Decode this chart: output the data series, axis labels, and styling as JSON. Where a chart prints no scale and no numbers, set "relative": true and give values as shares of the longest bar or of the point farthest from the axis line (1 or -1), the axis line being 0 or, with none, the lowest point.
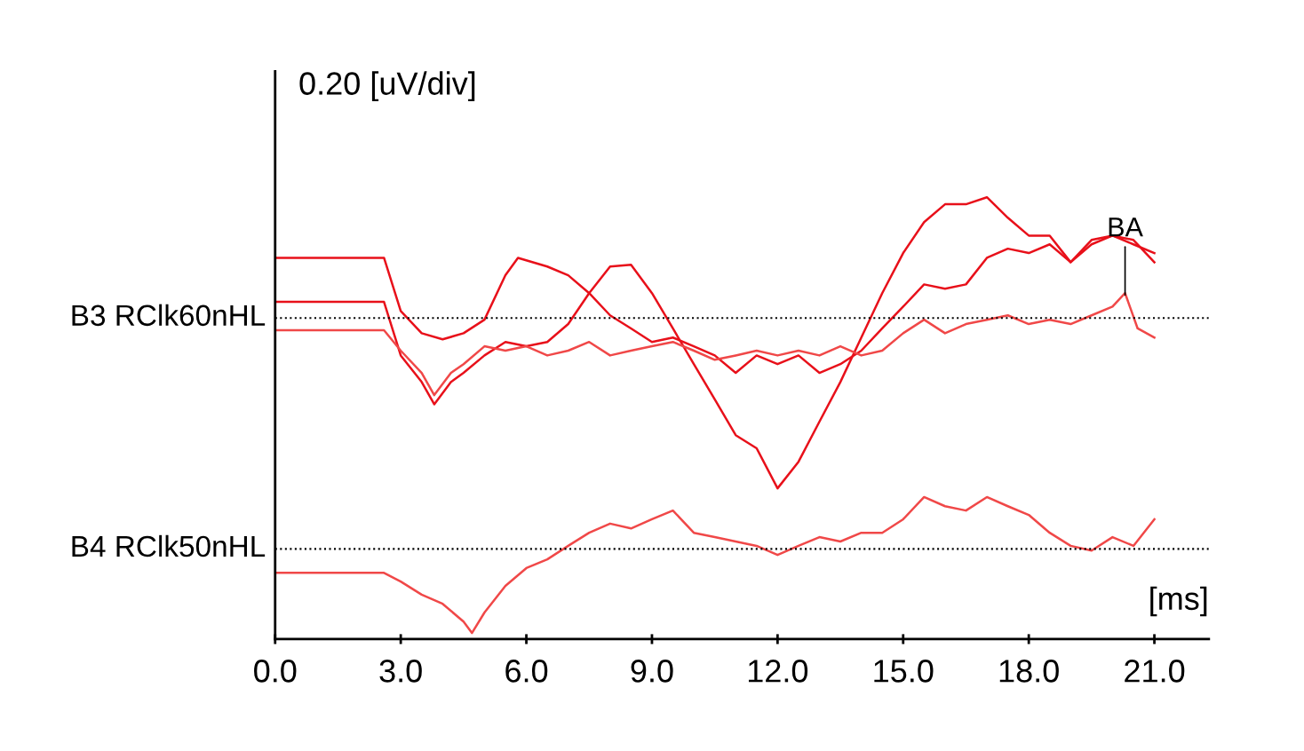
{
  "chart_data": {
    "type": "line",
    "relative": true,
    "ylabel": "0.20 [uV/div]",
    "xlabel": "[ms]",
    "xlim": [
      0,
      22.3
    ],
    "xticks": [
      {
        "value": 0,
        "label": "0.0"
      },
      {
        "value": 3,
        "label": "3.0"
      },
      {
        "value": 6,
        "label": "6.0"
      },
      {
        "value": 9,
        "label": "9.0"
      },
      {
        "value": 12,
        "label": "12.0"
      },
      {
        "value": 15,
        "label": "15.0"
      },
      {
        "value": 18,
        "label": "18.0"
      },
      {
        "value": 21,
        "label": "21.0"
      }
    ],
    "grid": false,
    "marker": "none",
    "line_style": "solid",
    "ref_lines": [
      {
        "axis": "y",
        "value": 0.723,
        "label": "B3 RClk60nHL",
        "color": "#000000",
        "line_style": "dotted"
      },
      {
        "axis": "y",
        "value": 0.193,
        "label": "B4 RClk50nHL",
        "color": "#000000",
        "line_style": "dotted"
      }
    ],
    "annotations": [
      {
        "text": "BA",
        "x": 20.3,
        "y": 0.77
      }
    ],
    "series": [
      {
        "color": "#e8101a",
        "x": [
          0,
          2.6,
          3.0,
          3.5,
          4.0,
          4.5,
          5.0,
          5.5,
          5.8,
          6.5,
          7.0,
          7.5,
          8.0,
          8.5,
          9.0,
          9.5,
          10.0,
          10.5,
          11.0,
          11.5,
          12.0,
          12.5,
          13.0,
          13.5,
          14.0,
          14.5,
          15.0,
          15.5,
          16.0,
          16.5,
          17.0,
          17.5,
          18.0,
          18.5,
          19.0,
          19.5,
          20.0,
          20.5,
          21.0
        ],
        "values": [
          0.861,
          0.861,
          0.739,
          0.688,
          0.674,
          0.688,
          0.719,
          0.821,
          0.861,
          0.841,
          0.821,
          0.78,
          0.729,
          0.699,
          0.668,
          0.678,
          0.658,
          0.637,
          0.597,
          0.637,
          0.617,
          0.637,
          0.597,
          0.617,
          0.648,
          0.699,
          0.749,
          0.8,
          0.79,
          0.8,
          0.861,
          0.882,
          0.872,
          0.892,
          0.851,
          0.892,
          0.912,
          0.892,
          0.872
        ]
      },
      {
        "color": "#e8101a",
        "x": [
          0,
          2.6,
          3.0,
          3.5,
          3.8,
          4.2,
          4.5,
          5.0,
          5.5,
          6.0,
          6.5,
          7.0,
          7.5,
          8.0,
          8.5,
          9.0,
          9.5,
          10.0,
          10.5,
          11.0,
          11.5,
          12.0,
          12.5,
          13.0,
          13.5,
          14.0,
          14.5,
          15.0,
          15.5,
          16.0,
          16.5,
          17.0,
          17.5,
          18.0,
          18.5,
          19.0,
          19.5,
          20.0,
          20.5,
          21.0
        ],
        "values": [
          0.76,
          0.76,
          0.637,
          0.576,
          0.525,
          0.576,
          0.597,
          0.637,
          0.668,
          0.658,
          0.668,
          0.709,
          0.78,
          0.841,
          0.845,
          0.78,
          0.699,
          0.617,
          0.536,
          0.454,
          0.424,
          0.332,
          0.393,
          0.485,
          0.576,
          0.678,
          0.78,
          0.872,
          0.943,
          0.984,
          0.984,
          1.0,
          0.953,
          0.912,
          0.912,
          0.851,
          0.902,
          0.912,
          0.902,
          0.851
        ]
      },
      {
        "color": "#f04848",
        "x": [
          0,
          2.6,
          3.0,
          3.5,
          3.8,
          4.2,
          4.5,
          5.0,
          5.5,
          6.0,
          6.5,
          7.0,
          7.5,
          8.0,
          8.5,
          9.0,
          9.5,
          10.0,
          10.5,
          11.0,
          11.5,
          12.0,
          12.5,
          13.0,
          13.5,
          14.0,
          14.5,
          15.0,
          15.5,
          16.0,
          16.5,
          17.0,
          17.5,
          18.0,
          18.5,
          19.0,
          19.5,
          20.0,
          20.3,
          20.6,
          21.0
        ],
        "values": [
          0.695,
          0.695,
          0.648,
          0.597,
          0.546,
          0.597,
          0.617,
          0.658,
          0.648,
          0.658,
          0.637,
          0.648,
          0.668,
          0.637,
          0.648,
          0.658,
          0.668,
          0.648,
          0.627,
          0.637,
          0.648,
          0.637,
          0.648,
          0.637,
          0.658,
          0.637,
          0.648,
          0.688,
          0.719,
          0.688,
          0.709,
          0.719,
          0.729,
          0.709,
          0.719,
          0.709,
          0.729,
          0.749,
          0.78,
          0.699,
          0.678
        ]
      },
      {
        "color": "#f04848",
        "x": [
          0,
          2.6,
          3.0,
          3.5,
          4.0,
          4.5,
          4.7,
          5.0,
          5.5,
          6.0,
          6.5,
          7.0,
          7.5,
          8.0,
          8.5,
          9.0,
          9.5,
          10.0,
          10.5,
          11.0,
          11.5,
          12.0,
          12.5,
          13.0,
          13.5,
          14.0,
          14.5,
          15.0,
          15.5,
          16.0,
          16.5,
          17.0,
          17.5,
          18.0,
          18.5,
          19.0,
          19.5,
          20.0,
          20.5,
          21.0
        ],
        "values": [
          0.138,
          0.138,
          0.118,
          0.088,
          0.067,
          0.026,
          0.0,
          0.047,
          0.108,
          0.149,
          0.169,
          0.2,
          0.23,
          0.251,
          0.24,
          0.261,
          0.281,
          0.23,
          0.22,
          0.21,
          0.2,
          0.179,
          0.2,
          0.22,
          0.21,
          0.23,
          0.23,
          0.261,
          0.312,
          0.291,
          0.281,
          0.312,
          0.291,
          0.271,
          0.23,
          0.2,
          0.189,
          0.22,
          0.2,
          0.261
        ]
      }
    ]
  }
}
